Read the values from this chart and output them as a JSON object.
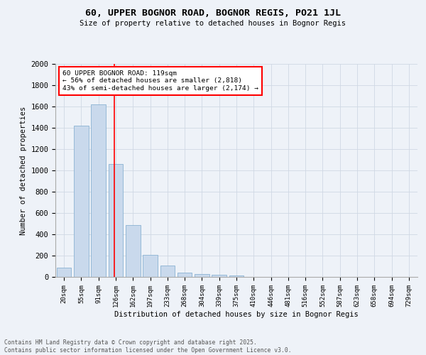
{
  "title_line1": "60, UPPER BOGNOR ROAD, BOGNOR REGIS, PO21 1JL",
  "title_line2": "Size of property relative to detached houses in Bognor Regis",
  "xlabel": "Distribution of detached houses by size in Bognor Regis",
  "ylabel": "Number of detached properties",
  "bar_labels": [
    "20sqm",
    "55sqm",
    "91sqm",
    "126sqm",
    "162sqm",
    "197sqm",
    "233sqm",
    "268sqm",
    "304sqm",
    "339sqm",
    "375sqm",
    "410sqm",
    "446sqm",
    "481sqm",
    "516sqm",
    "552sqm",
    "587sqm",
    "623sqm",
    "658sqm",
    "694sqm",
    "729sqm"
  ],
  "bar_values": [
    85,
    1420,
    1620,
    1060,
    490,
    205,
    110,
    40,
    25,
    18,
    12,
    0,
    0,
    0,
    0,
    0,
    0,
    0,
    0,
    0,
    0
  ],
  "bar_color": "#c9d9ec",
  "bar_edgecolor": "#7aa8cc",
  "grid_color": "#d0d8e4",
  "background_color": "#eef2f8",
  "vline_color": "red",
  "vline_pos": 2.925,
  "annotation_text": "60 UPPER BOGNOR ROAD: 119sqm\n← 56% of detached houses are smaller (2,818)\n43% of semi-detached houses are larger (2,174) →",
  "annotation_box_color": "white",
  "annotation_box_edgecolor": "red",
  "ylim": [
    0,
    2000
  ],
  "yticks": [
    0,
    200,
    400,
    600,
    800,
    1000,
    1200,
    1400,
    1600,
    1800,
    2000
  ],
  "footer_line1": "Contains HM Land Registry data © Crown copyright and database right 2025.",
  "footer_line2": "Contains public sector information licensed under the Open Government Licence v3.0."
}
